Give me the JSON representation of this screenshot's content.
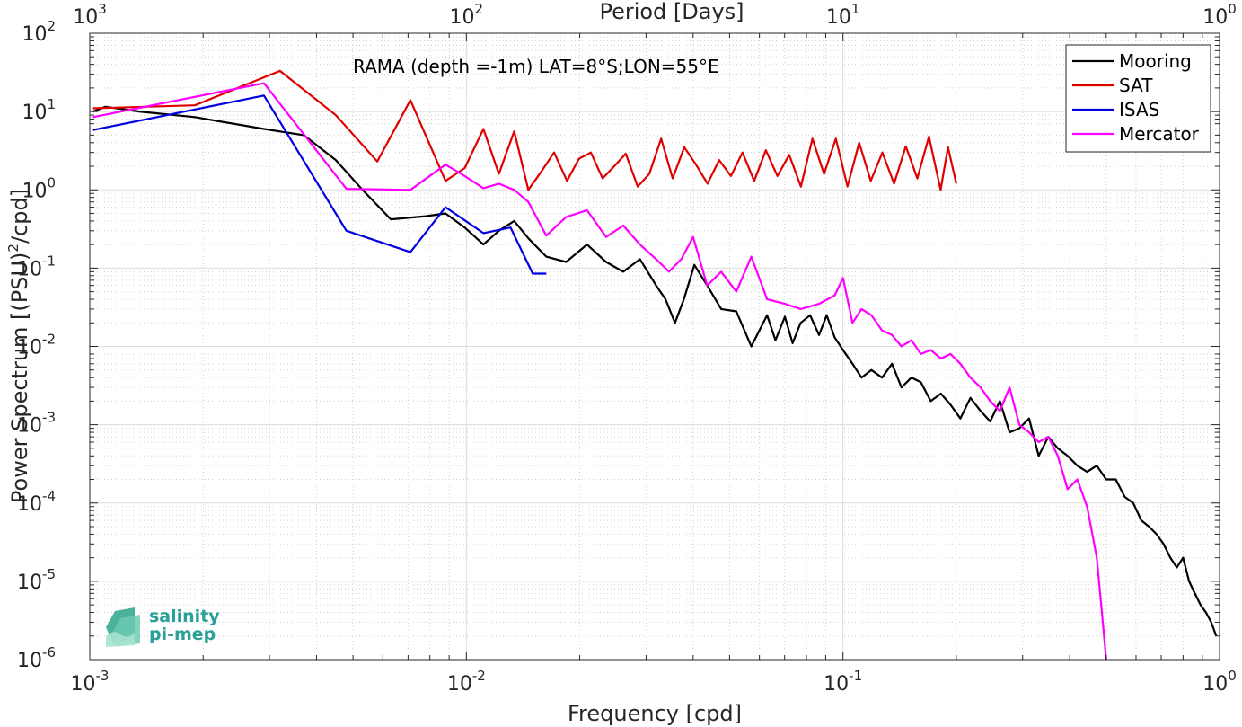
{
  "chart_data": {
    "type": "line",
    "title": "",
    "annotation": "RAMA (depth =-1m) LAT=8°S;LON=55°E",
    "xlabel": "Frequency [cpd]",
    "ylabel": "Power Spectrum [(PSU)",
    "ylabel_sup": "2",
    "ylabel_tail": "/cpd]",
    "top_axis_label": "Period [Days]",
    "x_scale": "log",
    "y_scale": "log",
    "xlim": [
      0.001,
      1
    ],
    "ylim": [
      1e-06,
      100
    ],
    "grid": true,
    "legend_position": "top-right",
    "x_ticks": [
      {
        "base": "10",
        "exp": "-3",
        "value": 0.001
      },
      {
        "base": "10",
        "exp": "-2",
        "value": 0.01
      },
      {
        "base": "10",
        "exp": "-1",
        "value": 0.1
      },
      {
        "base": "10",
        "exp": "0",
        "value": 1
      }
    ],
    "top_ticks": [
      {
        "base": "10",
        "exp": "3",
        "value": 0.001
      },
      {
        "base": "10",
        "exp": "2",
        "value": 0.01
      },
      {
        "base": "10",
        "exp": "1",
        "value": 0.1
      },
      {
        "base": "10",
        "exp": "0",
        "value": 1
      }
    ],
    "y_ticks": [
      {
        "base": "10",
        "exp": "2",
        "value": 100
      },
      {
        "base": "10",
        "exp": "1",
        "value": 10
      },
      {
        "base": "10",
        "exp": "0",
        "value": 1
      },
      {
        "base": "10",
        "exp": "-1",
        "value": 0.1
      },
      {
        "base": "10",
        "exp": "-2",
        "value": 0.01
      },
      {
        "base": "10",
        "exp": "-3",
        "value": 0.001
      },
      {
        "base": "10",
        "exp": "-4",
        "value": 0.0001
      },
      {
        "base": "10",
        "exp": "-5",
        "value": 1e-05
      },
      {
        "base": "10",
        "exp": "-6",
        "value": 1e-06
      }
    ],
    "series": [
      {
        "name": "Mooring",
        "color": "#000000",
        "x": [
          0.00102,
          0.0011,
          0.00135,
          0.0019,
          0.0029,
          0.0037,
          0.0045,
          0.0053,
          0.0063,
          0.0078,
          0.0088,
          0.0099,
          0.0111,
          0.0122,
          0.0134,
          0.0146,
          0.0163,
          0.0184,
          0.0209,
          0.0235,
          0.0261,
          0.0289,
          0.0319,
          0.0338,
          0.0358,
          0.0378,
          0.0403,
          0.0436,
          0.0475,
          0.0521,
          0.0571,
          0.0629,
          0.0662,
          0.0701,
          0.0735,
          0.0772,
          0.0818,
          0.0864,
          0.0905,
          0.0951,
          0.1,
          0.106,
          0.112,
          0.119,
          0.127,
          0.135,
          0.143,
          0.152,
          0.161,
          0.171,
          0.182,
          0.193,
          0.205,
          0.218,
          0.232,
          0.246,
          0.261,
          0.277,
          0.294,
          0.312,
          0.331,
          0.351,
          0.372,
          0.395,
          0.419,
          0.445,
          0.472,
          0.5,
          0.53,
          0.56,
          0.59,
          0.62,
          0.65,
          0.68,
          0.71,
          0.74,
          0.77,
          0.8,
          0.83,
          0.86,
          0.89,
          0.92,
          0.95,
          0.98
        ],
        "y": [
          10,
          11.5,
          10,
          8.5,
          6,
          5,
          2.4,
          1,
          0.42,
          0.46,
          0.5,
          0.33,
          0.2,
          0.3,
          0.4,
          0.24,
          0.14,
          0.12,
          0.2,
          0.12,
          0.09,
          0.13,
          0.06,
          0.04,
          0.02,
          0.04,
          0.11,
          0.06,
          0.03,
          0.028,
          0.01,
          0.025,
          0.012,
          0.024,
          0.011,
          0.02,
          0.025,
          0.014,
          0.025,
          0.013,
          0.009,
          0.006,
          0.004,
          0.005,
          0.004,
          0.006,
          0.003,
          0.004,
          0.0035,
          0.002,
          0.0025,
          0.0018,
          0.0012,
          0.0022,
          0.0015,
          0.0011,
          0.002,
          0.0008,
          0.0009,
          0.0012,
          0.0004,
          0.0007,
          0.0005,
          0.0004,
          0.0003,
          0.00025,
          0.0003,
          0.0002,
          0.0002,
          0.00012,
          0.0001,
          6e-05,
          5e-05,
          4e-05,
          3e-05,
          2e-05,
          1.5e-05,
          2e-05,
          1e-05,
          7e-06,
          5e-06,
          4e-06,
          3e-06,
          2e-06
        ]
      },
      {
        "name": "SAT",
        "color": "#e00000",
        "x": [
          0.00102,
          0.0019,
          0.0032,
          0.0045,
          0.0058,
          0.0071,
          0.0088,
          0.0099,
          0.0111,
          0.0122,
          0.0134,
          0.0146,
          0.0158,
          0.0171,
          0.0185,
          0.0199,
          0.0214,
          0.023,
          0.0247,
          0.0265,
          0.0285,
          0.0306,
          0.0329,
          0.0353,
          0.0379,
          0.0407,
          0.0437,
          0.0469,
          0.0504,
          0.0541,
          0.0581,
          0.0624,
          0.067,
          0.072,
          0.0773,
          0.083,
          0.0891,
          0.0957,
          0.1028,
          0.1104,
          0.1185,
          0.1273,
          0.1367,
          0.1468,
          0.1576,
          0.1692,
          0.1817,
          0.19,
          0.2
        ],
        "y": [
          11,
          12,
          33,
          9,
          2.3,
          14,
          1.3,
          1.9,
          6,
          1.6,
          5.6,
          1,
          1.7,
          3,
          1.3,
          2.5,
          3,
          1.4,
          2,
          2.9,
          1.1,
          1.6,
          4.5,
          1.4,
          3.5,
          2.1,
          1.2,
          2.4,
          1.5,
          3,
          1.3,
          3.2,
          1.5,
          2.8,
          1.1,
          4.5,
          1.6,
          4.5,
          1.1,
          4,
          1.3,
          3,
          1.2,
          3.6,
          1.4,
          4.8,
          1,
          3.5,
          1.2
        ]
      },
      {
        "name": "ISAS",
        "color": "#0000e0",
        "x": [
          0.00102,
          0.0029,
          0.0048,
          0.0071,
          0.0088,
          0.0111,
          0.0131,
          0.015,
          0.0163
        ],
        "y": [
          5.8,
          16,
          0.3,
          0.16,
          0.6,
          0.28,
          0.33,
          0.085,
          0.085
        ]
      },
      {
        "name": "Mercator",
        "color": "#ff00ff",
        "x": [
          0.00102,
          0.0029,
          0.0048,
          0.0071,
          0.0088,
          0.0099,
          0.0111,
          0.0122,
          0.0134,
          0.0146,
          0.0163,
          0.0184,
          0.0209,
          0.0235,
          0.0261,
          0.0289,
          0.0319,
          0.0345,
          0.0372,
          0.04,
          0.0436,
          0.0475,
          0.0521,
          0.0571,
          0.0629,
          0.0701,
          0.0772,
          0.0864,
          0.0951,
          0.1,
          0.106,
          0.112,
          0.119,
          0.127,
          0.135,
          0.143,
          0.152,
          0.161,
          0.171,
          0.182,
          0.193,
          0.205,
          0.218,
          0.232,
          0.246,
          0.261,
          0.277,
          0.294,
          0.312,
          0.331,
          0.351,
          0.372,
          0.395,
          0.419,
          0.445,
          0.472,
          0.485,
          0.5
        ],
        "y": [
          8.5,
          23,
          1.03,
          1.0,
          2.1,
          1.5,
          1.05,
          1.2,
          1.0,
          0.7,
          0.26,
          0.45,
          0.55,
          0.25,
          0.35,
          0.2,
          0.13,
          0.09,
          0.13,
          0.25,
          0.06,
          0.09,
          0.05,
          0.14,
          0.04,
          0.035,
          0.03,
          0.035,
          0.045,
          0.075,
          0.02,
          0.03,
          0.025,
          0.016,
          0.014,
          0.01,
          0.012,
          0.008,
          0.009,
          0.007,
          0.008,
          0.006,
          0.004,
          0.003,
          0.002,
          0.0015,
          0.003,
          0.001,
          0.0008,
          0.0006,
          0.0007,
          0.0004,
          0.00015,
          0.0002,
          9e-05,
          2e-05,
          5e-06,
          1e-06
        ]
      }
    ]
  },
  "logo": {
    "line1": "salinity",
    "line2": "pi-mep"
  }
}
